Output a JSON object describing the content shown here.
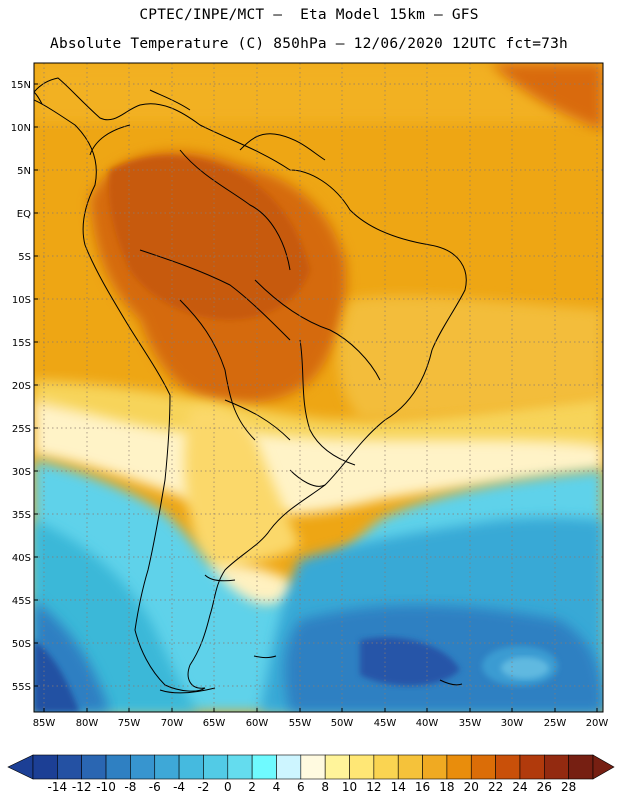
{
  "header": {
    "title_line1": "CPTEC/INPE/MCT –  Eta Model 15km – GFS",
    "title_line2": "Absolute Temperature (C) 850hPa – 12/06/2020 12UTC fct=73h"
  },
  "map": {
    "lat_labels": [
      "15N",
      "10N",
      "5N",
      "EQ",
      "5S",
      "10S",
      "15S",
      "20S",
      "25S",
      "30S",
      "35S",
      "40S",
      "45S",
      "50S",
      "55S"
    ],
    "lon_labels": [
      "85W",
      "80W",
      "75W",
      "70W",
      "65W",
      "60W",
      "55W",
      "50W",
      "45W",
      "40W",
      "35W",
      "30W",
      "25W",
      "20W"
    ],
    "grid": "dotted",
    "colors": {
      "warm_orange": "#e8920a",
      "hot_red": "#c65208",
      "yellow": "#f5d050",
      "pale": "#fff6d8",
      "cyan": "#55d6ec",
      "teal": "#3ab8d8",
      "blue": "#2b7fc4",
      "deep_blue": "#2151a6",
      "coast": "#000000"
    }
  },
  "colorbar": {
    "labels": [
      "-14",
      "-12",
      "-10",
      "-8",
      "-6",
      "-4",
      "-2",
      "0",
      "2",
      "4",
      "6",
      "8",
      "10",
      "12",
      "14",
      "16",
      "18",
      "20",
      "22",
      "24",
      "26",
      "28"
    ],
    "colors": [
      "#1c3f95",
      "#2451a3",
      "#2a66b2",
      "#2f80c2",
      "#3795cf",
      "#3ea8d7",
      "#45badf",
      "#52cbe6",
      "#64dcee",
      "#6ffaff",
      "#cdf5ff",
      "#fffae0",
      "#fff49a",
      "#ffe775",
      "#fad451",
      "#f5c23a",
      "#f0aa22",
      "#e98d0c",
      "#db6d07",
      "#c95009",
      "#b13a0c",
      "#932a10",
      "#761f12"
    ]
  }
}
